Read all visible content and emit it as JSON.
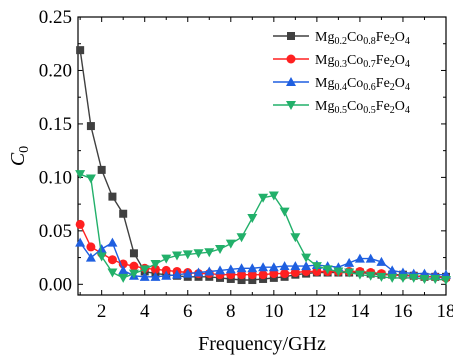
{
  "chart_data": {
    "type": "line",
    "title": "",
    "xlabel": "Frequency/GHz",
    "ylabel": "C",
    "ylabel_sub": "0",
    "xlim": [
      0.9,
      18
    ],
    "ylim": [
      -0.01,
      0.25
    ],
    "xticks": [
      2,
      4,
      6,
      8,
      10,
      12,
      14,
      16,
      18
    ],
    "yticks": [
      0.0,
      0.05,
      0.1,
      0.15,
      0.2,
      0.25
    ],
    "ytick_labels": [
      "0.00",
      "0.05",
      "0.10",
      "0.15",
      "0.20",
      "0.25"
    ],
    "grid": false,
    "legend_position": "top-right",
    "series": [
      {
        "name_parts": [
          [
            "Mg",
            false
          ],
          [
            "0.2",
            true
          ],
          [
            "Co",
            false
          ],
          [
            "0.8",
            true
          ],
          [
            "Fe",
            false
          ],
          [
            "2",
            true
          ],
          [
            "O",
            false
          ],
          [
            "4",
            true
          ]
        ],
        "color": "#404040",
        "marker": "square",
        "x": [
          1.0,
          1.5,
          2.0,
          2.5,
          3.0,
          3.5,
          4.0,
          4.5,
          5.0,
          5.5,
          6.0,
          6.5,
          7.0,
          7.5,
          8.0,
          8.5,
          9.0,
          9.5,
          10.0,
          10.5,
          11.0,
          11.5,
          12.0,
          12.5,
          13.0,
          13.5,
          14.0,
          14.5,
          15.0,
          15.5,
          16.0,
          16.5,
          17.0,
          17.5,
          18.0
        ],
        "y": [
          0.219,
          0.148,
          0.107,
          0.082,
          0.066,
          0.029,
          0.012,
          0.01,
          0.009,
          0.008,
          0.007,
          0.007,
          0.007,
          0.006,
          0.005,
          0.004,
          0.004,
          0.005,
          0.006,
          0.007,
          0.009,
          0.01,
          0.011,
          0.011,
          0.011,
          0.011,
          0.011,
          0.01,
          0.009,
          0.009,
          0.009,
          0.008,
          0.007,
          0.007,
          0.007
        ]
      },
      {
        "name_parts": [
          [
            "Mg",
            false
          ],
          [
            "0.3",
            true
          ],
          [
            "Co",
            false
          ],
          [
            "0.7",
            true
          ],
          [
            "Fe",
            false
          ],
          [
            "2",
            true
          ],
          [
            "O",
            false
          ],
          [
            "4",
            true
          ]
        ],
        "color": "#ff2020",
        "marker": "circle",
        "x": [
          1.0,
          1.5,
          2.0,
          2.5,
          3.0,
          3.5,
          4.0,
          4.5,
          5.0,
          5.5,
          6.0,
          6.5,
          7.0,
          7.5,
          8.0,
          8.5,
          9.0,
          9.5,
          10.0,
          10.5,
          11.0,
          11.5,
          12.0,
          12.5,
          13.0,
          13.5,
          14.0,
          14.5,
          15.0,
          15.5,
          16.0,
          16.5,
          17.0,
          17.5,
          18.0
        ],
        "y": [
          0.056,
          0.035,
          0.029,
          0.023,
          0.019,
          0.017,
          0.015,
          0.014,
          0.013,
          0.012,
          0.011,
          0.01,
          0.01,
          0.009,
          0.009,
          0.009,
          0.009,
          0.009,
          0.01,
          0.01,
          0.011,
          0.012,
          0.012,
          0.012,
          0.012,
          0.012,
          0.012,
          0.011,
          0.01,
          0.009,
          0.008,
          0.008,
          0.007,
          0.007,
          0.006
        ]
      },
      {
        "name_parts": [
          [
            "Mg",
            false
          ],
          [
            "0.4",
            true
          ],
          [
            "Co",
            false
          ],
          [
            "0.6",
            true
          ],
          [
            "Fe",
            false
          ],
          [
            "2",
            true
          ],
          [
            "O",
            false
          ],
          [
            "4",
            true
          ]
        ],
        "color": "#1f5fe0",
        "marker": "triangle-up",
        "x": [
          1.0,
          1.5,
          2.0,
          2.5,
          3.0,
          3.5,
          4.0,
          4.5,
          5.0,
          5.5,
          6.0,
          6.5,
          7.0,
          7.5,
          8.0,
          8.5,
          9.0,
          9.5,
          10.0,
          10.5,
          11.0,
          11.5,
          12.0,
          12.5,
          13.0,
          13.5,
          14.0,
          14.5,
          15.0,
          15.5,
          16.0,
          16.5,
          17.0,
          17.5,
          18.0
        ],
        "y": [
          0.039,
          0.025,
          0.033,
          0.039,
          0.013,
          0.008,
          0.007,
          0.007,
          0.008,
          0.009,
          0.01,
          0.011,
          0.012,
          0.013,
          0.014,
          0.015,
          0.015,
          0.016,
          0.016,
          0.017,
          0.017,
          0.017,
          0.018,
          0.017,
          0.016,
          0.02,
          0.024,
          0.024,
          0.021,
          0.013,
          0.011,
          0.01,
          0.01,
          0.009,
          0.009
        ]
      },
      {
        "name_parts": [
          [
            "Mg",
            false
          ],
          [
            "0.5",
            true
          ],
          [
            "Co",
            false
          ],
          [
            "0.5",
            true
          ],
          [
            "Fe",
            false
          ],
          [
            "2",
            true
          ],
          [
            "O",
            false
          ],
          [
            "4",
            true
          ]
        ],
        "color": "#22b06a",
        "marker": "triangle-down",
        "x": [
          1.0,
          1.5,
          2.0,
          2.5,
          3.0,
          3.5,
          4.0,
          4.5,
          5.0,
          5.5,
          6.0,
          6.5,
          7.0,
          7.5,
          8.0,
          8.5,
          9.0,
          9.5,
          10.0,
          10.5,
          11.0,
          11.5,
          12.0,
          12.5,
          13.0,
          13.5,
          14.0,
          14.5,
          15.0,
          15.5,
          16.0,
          16.5,
          17.0,
          17.5,
          18.0
        ],
        "y": [
          0.103,
          0.099,
          0.026,
          0.011,
          0.006,
          0.01,
          0.014,
          0.019,
          0.024,
          0.027,
          0.028,
          0.029,
          0.03,
          0.033,
          0.038,
          0.044,
          0.062,
          0.081,
          0.083,
          0.068,
          0.044,
          0.025,
          0.017,
          0.014,
          0.012,
          0.011,
          0.009,
          0.008,
          0.007,
          0.006,
          0.006,
          0.006,
          0.005,
          0.005,
          0.004
        ]
      }
    ]
  }
}
